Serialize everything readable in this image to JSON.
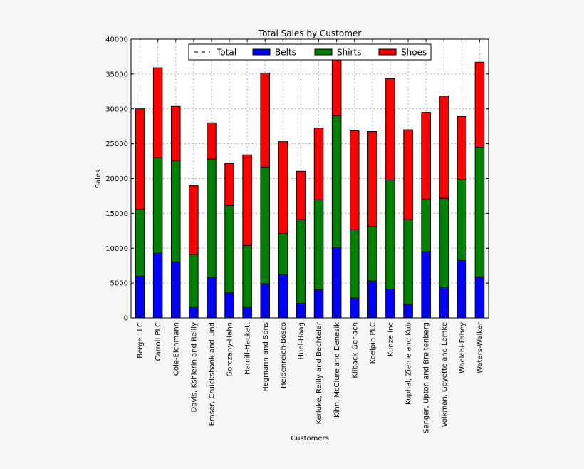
{
  "chart_data": {
    "type": "bar",
    "stacked": true,
    "title": "Total Sales by Customer",
    "xlabel": "Customers",
    "ylabel": "Sales",
    "ylim": [
      0,
      40000
    ],
    "yticks": [
      0,
      5000,
      10000,
      15000,
      20000,
      25000,
      30000,
      35000,
      40000
    ],
    "grid": true,
    "legend_position": "top-center",
    "legend": [
      {
        "name": "Total",
        "style": "dashed-line",
        "color": "#000000"
      },
      {
        "name": "Belts",
        "color": "#0000ff"
      },
      {
        "name": "Shirts",
        "color": "#008000"
      },
      {
        "name": "Shoes",
        "color": "#ff0000"
      }
    ],
    "categories": [
      "Berge LLC",
      "Carroll PLC",
      "Cole-Eichmann",
      "Davis, Kshlerin and Reilly",
      "Emser, Cruickshank and Lind",
      "Gorczany-Hahn",
      "Hamill-Hackett",
      "Hegmann and Sons",
      "Heidenreich-Bosco",
      "Huel-Haag",
      "Kerluke, Reilly and Bechtelar",
      "Kihn, McClure and Denesik",
      "Kilback-Gerlach",
      "Koelpin PLC",
      "Kunze Inc",
      "Kuphal, Zieme and Kub",
      "Senger, Upton and Breitenberg",
      "Volkman, Goyette and Lemke",
      "Waelchi-Fahey",
      "Waters-Walker"
    ],
    "series": [
      {
        "name": "Belts",
        "color": "#0000ff",
        "values": [
          6000,
          9300,
          8050,
          1500,
          5800,
          3600,
          1500,
          4900,
          6200,
          2100,
          4050,
          10100,
          2850,
          5300,
          4150,
          1950,
          9500,
          4350,
          8250,
          5900
        ]
      },
      {
        "name": "Shirts",
        "color": "#008000",
        "values": [
          9600,
          13700,
          14500,
          7600,
          17000,
          12550,
          8900,
          16750,
          5900,
          12000,
          12900,
          18900,
          9800,
          7850,
          15650,
          12150,
          7550,
          12800,
          11650,
          18600
        ]
      },
      {
        "name": "Shoes",
        "color": "#ff0000",
        "values": [
          14400,
          12900,
          7800,
          9900,
          5200,
          6000,
          13000,
          13500,
          13200,
          6950,
          10300,
          8100,
          14200,
          13600,
          14550,
          12900,
          12450,
          14700,
          9000,
          12200
        ]
      }
    ]
  }
}
